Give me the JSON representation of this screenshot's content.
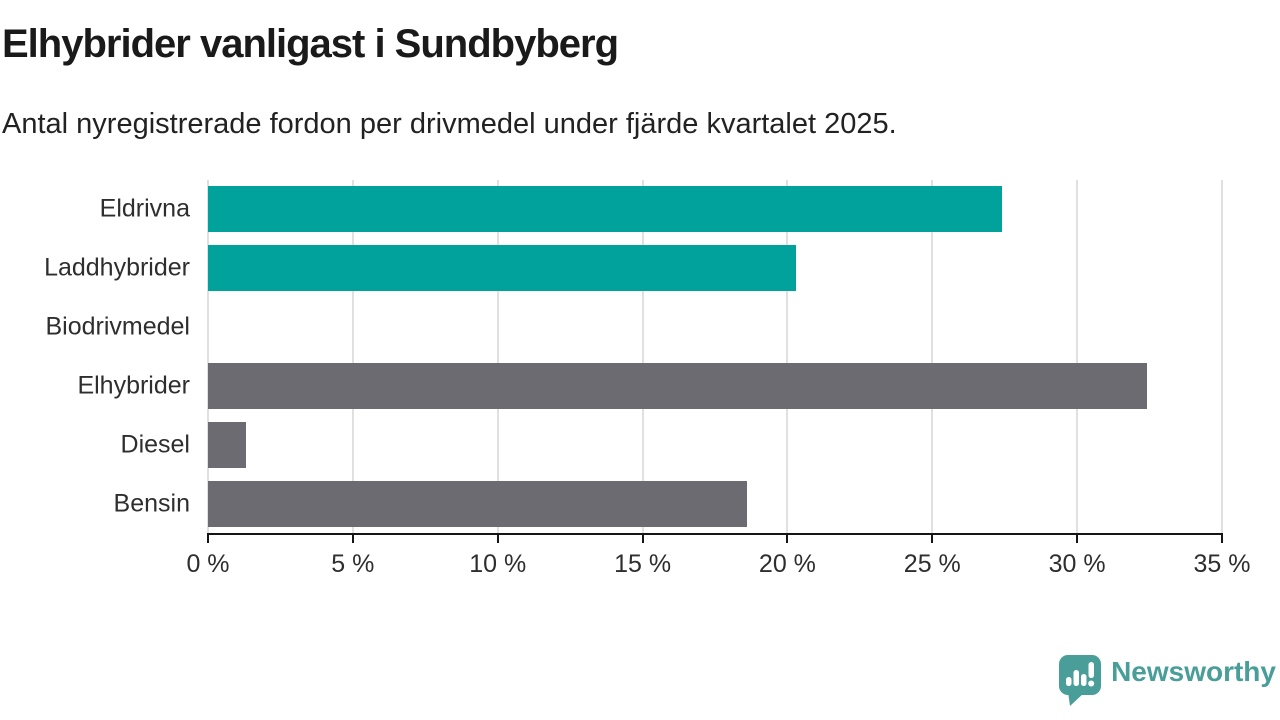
{
  "header": {
    "title": "Elhybrider vanligast i Sundbyberg",
    "subtitle": "Antal nyregistrerade fordon per drivmedel under fjärde kvartalet 2025."
  },
  "chart_data": {
    "type": "bar",
    "orientation": "horizontal",
    "title": "Elhybrider vanligast i Sundbyberg",
    "subtitle": "Antal nyregistrerade fordon per drivmedel under fjärde kvartalet 2025.",
    "categories": [
      "Eldrivna",
      "Laddhybrider",
      "Biodrivmedel",
      "Elhybrider",
      "Diesel",
      "Bensin"
    ],
    "values": [
      27.4,
      20.3,
      0,
      32.4,
      1.3,
      18.6
    ],
    "unit": "%",
    "bar_colors": [
      "#00a29b",
      "#00a29b",
      "#00a29b",
      "#6b6b71",
      "#6b6b71",
      "#6b6b71"
    ],
    "xlim": [
      0,
      35
    ],
    "xticks": [
      0,
      5,
      10,
      15,
      20,
      25,
      30,
      35
    ],
    "xtick_suffix": " %",
    "grid": true,
    "legend": "none"
  },
  "style": {
    "teal": "#00a29b",
    "gray": "#6b6b71",
    "gridline_color": "#e0e0e0",
    "axis_color": "#151515",
    "text_color": "#2e2e2e",
    "brand_color": "#4a9e99"
  },
  "branding": {
    "logo_text": "Newsworthy",
    "logo_icon": "newsworthy-speech-bubble-chart-icon"
  }
}
